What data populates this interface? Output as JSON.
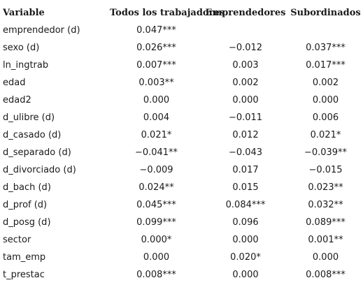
{
  "table": {
    "headers": [
      "Variable",
      "Todos los trabajadores",
      "Emprendedores",
      "Subordinados"
    ],
    "rows": [
      {
        "variable": "emprendedor (d)",
        "todos": "0.047***",
        "emprendedores": "",
        "subordinados": ""
      },
      {
        "variable": "sexo (d)",
        "todos": "0.026***",
        "emprendedores": "−0.012",
        "subordinados": "0.037***"
      },
      {
        "variable": "ln_ingtrab",
        "todos": "0.007***",
        "emprendedores": "0.003",
        "subordinados": "0.017***"
      },
      {
        "variable": "edad",
        "todos": "0.003**",
        "emprendedores": "0.002",
        "subordinados": "0.002"
      },
      {
        "variable": "edad2",
        "todos": "0.000",
        "emprendedores": "0.000",
        "subordinados": "0.000"
      },
      {
        "variable": "d_ulibre (d)",
        "todos": "0.004",
        "emprendedores": "−0.011",
        "subordinados": "0.006"
      },
      {
        "variable": "d_casado (d)",
        "todos": "0.021*",
        "emprendedores": "0.012",
        "subordinados": "0.021*"
      },
      {
        "variable": "d_separado (d)",
        "todos": "−0.041**",
        "emprendedores": "−0.043",
        "subordinados": "−0.039**"
      },
      {
        "variable": "d_divorciado (d)",
        "todos": "−0.009",
        "emprendedores": "0.017",
        "subordinados": "−0.015"
      },
      {
        "variable": "d_bach (d)",
        "todos": "0.024**",
        "emprendedores": "0.015",
        "subordinados": "0.023**"
      },
      {
        "variable": "d_prof (d)",
        "todos": "0.045***",
        "emprendedores": "0.084***",
        "subordinados": "0.032**"
      },
      {
        "variable": "d_posg (d)",
        "todos": "0.099***",
        "emprendedores": "0.096",
        "subordinados": "0.089***"
      },
      {
        "variable": "sector",
        "todos": "0.000*",
        "emprendedores": "0.000",
        "subordinados": "0.001**"
      },
      {
        "variable": "tam_emp",
        "todos": "0.000",
        "emprendedores": "0.020*",
        "subordinados": "0.000"
      },
      {
        "variable": "t_prestac",
        "todos": "0.008***",
        "emprendedores": "0.000",
        "subordinados": "0.008***"
      }
    ]
  }
}
